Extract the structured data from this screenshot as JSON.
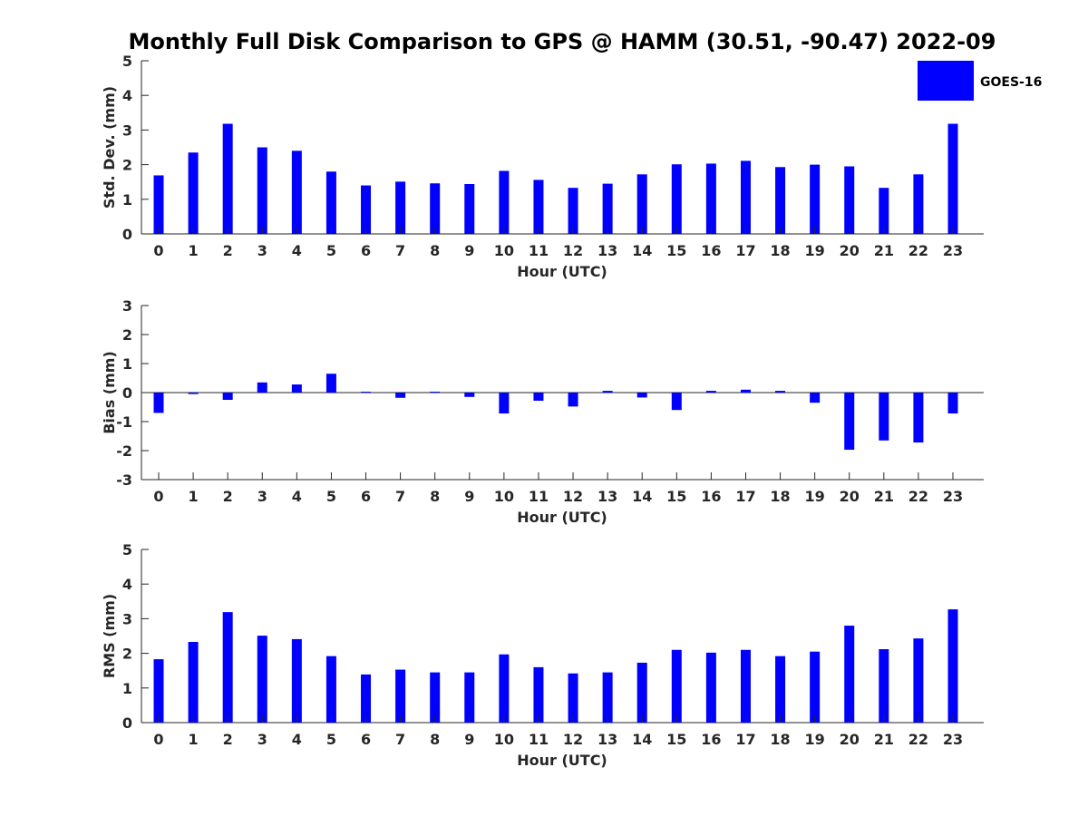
{
  "chart_data": [
    {
      "type": "bar",
      "title": "Monthly Full Disk Comparison to GPS @ HAMM (30.51, -90.47) 2022-09",
      "xlabel": "Hour (UTC)",
      "ylabel": "Std. Dev. (mm)",
      "ylim": [
        0,
        5
      ],
      "yticks": [
        0,
        1,
        2,
        3,
        4,
        5
      ],
      "categories": [
        "0",
        "1",
        "2",
        "3",
        "4",
        "5",
        "6",
        "7",
        "8",
        "9",
        "10",
        "11",
        "12",
        "13",
        "14",
        "15",
        "16",
        "17",
        "18",
        "19",
        "20",
        "21",
        "22",
        "23"
      ],
      "series": [
        {
          "name": "GOES-16",
          "color": "#0000ff",
          "values": [
            1.69,
            2.35,
            3.18,
            2.5,
            2.4,
            1.8,
            1.4,
            1.51,
            1.46,
            1.44,
            1.82,
            1.56,
            1.33,
            1.45,
            1.72,
            2.01,
            2.03,
            2.11,
            1.93,
            2.0,
            1.95,
            1.33,
            1.72,
            3.18
          ]
        }
      ],
      "legend": "top-right",
      "grid": false
    },
    {
      "type": "bar",
      "xlabel": "Hour (UTC)",
      "ylabel": "Bias (mm)",
      "ylim": [
        -3,
        3
      ],
      "yticks": [
        -3,
        -2,
        -1,
        0,
        1,
        2,
        3
      ],
      "categories": [
        "0",
        "1",
        "2",
        "3",
        "4",
        "5",
        "6",
        "7",
        "8",
        "9",
        "10",
        "11",
        "12",
        "13",
        "14",
        "15",
        "16",
        "17",
        "18",
        "19",
        "20",
        "21",
        "22",
        "23"
      ],
      "series": [
        {
          "name": "GOES-16",
          "color": "#0000ff",
          "values": [
            -0.7,
            -0.05,
            -0.25,
            0.35,
            0.28,
            0.65,
            0.03,
            -0.18,
            0.03,
            -0.15,
            -0.72,
            -0.28,
            -0.48,
            0.06,
            -0.17,
            -0.6,
            0.06,
            0.1,
            0.06,
            -0.35,
            -1.97,
            -1.65,
            -1.72,
            -0.72
          ]
        }
      ],
      "grid": false
    },
    {
      "type": "bar",
      "xlabel": "Hour (UTC)",
      "ylabel": "RMS (mm)",
      "ylim": [
        0,
        5
      ],
      "yticks": [
        0,
        1,
        2,
        3,
        4,
        5
      ],
      "categories": [
        "0",
        "1",
        "2",
        "3",
        "4",
        "5",
        "6",
        "7",
        "8",
        "9",
        "10",
        "11",
        "12",
        "13",
        "14",
        "15",
        "16",
        "17",
        "18",
        "19",
        "20",
        "21",
        "22",
        "23"
      ],
      "series": [
        {
          "name": "GOES-16",
          "color": "#0000ff",
          "values": [
            1.83,
            2.33,
            3.19,
            2.51,
            2.41,
            1.92,
            1.39,
            1.53,
            1.45,
            1.45,
            1.97,
            1.6,
            1.42,
            1.45,
            1.73,
            2.1,
            2.02,
            2.1,
            1.92,
            2.05,
            2.8,
            2.12,
            2.43,
            3.27
          ]
        }
      ],
      "grid": false
    }
  ]
}
